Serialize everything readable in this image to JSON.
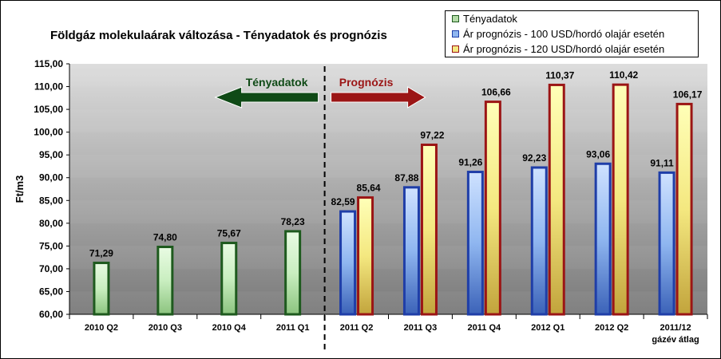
{
  "chart_data": {
    "type": "bar",
    "title": "Földgáz molekulaárak változása - Tényadatok és prognózis",
    "ylabel": "Ft/m3",
    "ylim": [
      60,
      115
    ],
    "yticks": [
      "60,00",
      "65,00",
      "70,00",
      "75,00",
      "80,00",
      "85,00",
      "90,00",
      "95,00",
      "100,00",
      "105,00",
      "110,00",
      "115,00"
    ],
    "categories": [
      "2010 Q2",
      "2010 Q3",
      "2010 Q4",
      "2011 Q1",
      "2011 Q2",
      "2011 Q3",
      "2011 Q4",
      "2012 Q1",
      "2012 Q2",
      "2011/12|gázév átlag"
    ],
    "series": [
      {
        "name": "Tényadatok",
        "color": "#1e5a1e",
        "values": [
          71.29,
          74.8,
          75.67,
          78.23,
          null,
          null,
          null,
          null,
          null,
          null
        ],
        "labels": [
          "71,29",
          "74,80",
          "75,67",
          "78,23",
          "",
          "",
          "",
          "",
          "",
          ""
        ]
      },
      {
        "name": "Ár prognózis - 100 USD/hordó olajár esetén",
        "color": "#1f3ea8",
        "values": [
          null,
          null,
          null,
          null,
          82.59,
          87.88,
          91.26,
          92.23,
          93.06,
          91.11
        ],
        "labels": [
          "",
          "",
          "",
          "",
          "82,59",
          "87,88",
          "91,26",
          "92,23",
          "93,06",
          "91,11"
        ]
      },
      {
        "name": "Ár prognózis - 120 USD/hordó olajár esetén",
        "color": "#9b1515",
        "values": [
          null,
          null,
          null,
          null,
          85.64,
          97.22,
          106.66,
          110.37,
          110.42,
          106.17
        ],
        "labels": [
          "",
          "",
          "",
          "",
          "85,64",
          "97,22",
          "106,66",
          "110,37",
          "110,42",
          "106,17"
        ]
      }
    ],
    "annotations": {
      "actual": "Tényadatok",
      "forecast": "Prognózis"
    },
    "legend_position": "top-right",
    "grid": false
  }
}
